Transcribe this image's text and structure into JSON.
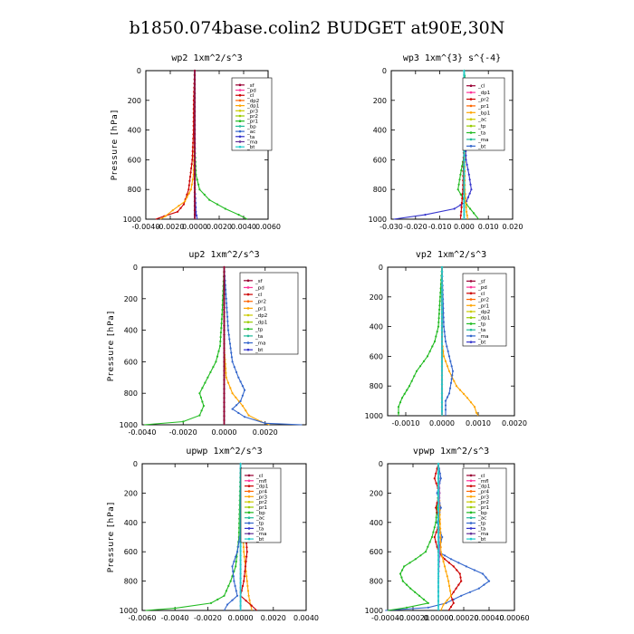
{
  "page_title": "b1850.074base.colin2  BUDGET at90E,30N",
  "chart_data": [
    {
      "type": "line",
      "title": "wp2   1xm^2/s^3",
      "ylabel": "Pressure [hPa]",
      "ylim": [
        1000,
        0
      ],
      "xlim": [
        -0.004,
        0.006
      ],
      "xticks": [
        "-0.0040",
        "-0.0020",
        "0.0000",
        "0.0020",
        "0.0040",
        "0.0060"
      ],
      "xtick_values": [
        -0.004,
        -0.002,
        0,
        0.002,
        0.004,
        0.006
      ],
      "yticks": [
        "0",
        "200",
        "400",
        "600",
        "800",
        "1000"
      ],
      "legend": [
        "_sf",
        "_pd",
        "_cl",
        "_dp2",
        "_dp1",
        "_pr3",
        "_pr2",
        "_pr1",
        "_bp",
        "_ac",
        "_ta",
        "_ma",
        "_bt"
      ],
      "series": [
        {
          "name": "_dp1",
          "color": "#cc0000",
          "p": [
            0,
            200,
            400,
            600,
            800,
            900,
            950,
            980,
            1000
          ],
          "x": [
            0,
            -8e-05,
            -0.0001,
            -0.0002,
            -0.0005,
            -0.0009,
            -0.0014,
            -0.0025,
            -0.0032
          ]
        },
        {
          "name": "_pr1",
          "color": "#ffa500",
          "p": [
            0,
            400,
            700,
            800,
            880,
            940,
            980,
            1000
          ],
          "x": [
            0,
            0,
            -0.0001,
            -0.0003,
            -0.0008,
            -0.0018,
            -0.0024,
            -0.0028
          ]
        },
        {
          "name": "_ac",
          "color": "#22bb22",
          "p": [
            0,
            500,
            700,
            800,
            870,
            930,
            970,
            1000
          ],
          "x": [
            0,
            0,
            0.0001,
            0.0004,
            0.0012,
            0.0025,
            0.0036,
            0.0043
          ]
        },
        {
          "name": "_bp",
          "color": "#3333cc",
          "p": [
            0,
            800,
            950,
            1000
          ],
          "x": [
            0,
            2e-05,
            0.0001,
            0.0002
          ]
        },
        {
          "name": "_pd",
          "color": "#ff3399",
          "p": [
            0,
            1000
          ],
          "x": [
            0,
            0
          ]
        },
        {
          "name": "_bt",
          "color": "#22cccc",
          "p": [
            0,
            1000
          ],
          "x": [
            0,
            0
          ]
        },
        {
          "name": "_sf",
          "color": "#990033",
          "p": [
            0,
            1000
          ],
          "x": [
            0,
            0
          ]
        }
      ]
    },
    {
      "type": "line",
      "title": "wp3   1xm^{3} s^{-4}",
      "ylabel": "",
      "ylim": [
        1000,
        0
      ],
      "xlim": [
        -0.03,
        0.02
      ],
      "xticks": [
        "-0.030",
        "-0.020",
        "-0.010",
        "0.000",
        "0.010",
        "0.020"
      ],
      "xtick_values": [
        -0.03,
        -0.02,
        -0.01,
        0,
        0.01,
        0.02
      ],
      "yticks": [
        "0",
        "200",
        "400",
        "600",
        "800",
        "1000"
      ],
      "legend": [
        "_cl",
        "_dp1",
        "_pr2",
        "_pr1",
        "_bp1",
        "_ac",
        "_tp",
        "_ta",
        "_ma",
        "_bt"
      ],
      "series": [
        {
          "name": "_ac",
          "color": "#22bb22",
          "p": [
            0,
            100,
            200,
            300,
            500,
            700,
            800,
            900,
            960,
            1000
          ],
          "x": [
            0,
            0.0008,
            0.002,
            0.0015,
            0.0008,
            -0.0015,
            -0.0025,
            0.001,
            0.004,
            0.006
          ]
        },
        {
          "name": "_ta",
          "color": "#3333cc",
          "p": [
            0,
            200,
            400,
            600,
            700,
            800,
            880,
            930,
            970,
            1000
          ],
          "x": [
            0,
            0.0002,
            0.0003,
            0.0008,
            0.002,
            0.003,
            0.001,
            -0.004,
            -0.016,
            -0.029
          ]
        },
        {
          "name": "_dp1",
          "color": "#cc0000",
          "p": [
            0,
            400,
            800,
            950,
            1000
          ],
          "x": [
            0,
            0,
            -0.0005,
            -0.0012,
            -0.0015
          ]
        },
        {
          "name": "_pr1",
          "color": "#ffa500",
          "p": [
            0,
            800,
            950,
            1000
          ],
          "x": [
            0,
            0.0003,
            0.001,
            0.0015
          ]
        },
        {
          "name": "_tp",
          "color": "#22bb99",
          "p": [
            0,
            1000
          ],
          "x": [
            0,
            0
          ]
        },
        {
          "name": "_bt",
          "color": "#22cccc",
          "p": [
            0,
            1000
          ],
          "x": [
            0,
            0
          ]
        }
      ]
    },
    {
      "type": "line",
      "title": "up2   1xm^2/s^3",
      "ylabel": "Pressure [hPa]",
      "ylim": [
        1000,
        0
      ],
      "xlim": [
        -0.004,
        0.004
      ],
      "xticks": [
        "-0.0040",
        "-0.0020",
        "0.0000",
        "0.0020"
      ],
      "xtick_values": [
        -0.004,
        -0.002,
        0,
        0.002
      ],
      "yticks": [
        "0",
        "200",
        "400",
        "600",
        "800",
        "1000"
      ],
      "legend": [
        "_sf",
        "_pd",
        "_cl",
        "_pr2",
        "_pr1",
        "_dp2",
        "_dp1",
        "_tp",
        "_ta",
        "_ma",
        "_bt"
      ],
      "series": [
        {
          "name": "_dp1",
          "color": "#22bb22",
          "p": [
            0,
            300,
            500,
            600,
            700,
            800,
            880,
            940,
            980,
            1000
          ],
          "x": [
            0,
            -0.0001,
            -0.0002,
            -0.0004,
            -0.0008,
            -0.0012,
            -0.001,
            -0.0012,
            -0.002,
            -0.0039
          ]
        },
        {
          "name": "_pr1",
          "color": "#ffa500",
          "p": [
            0,
            500,
            700,
            800,
            880,
            940,
            980,
            1000
          ],
          "x": [
            0,
            0,
            0.0001,
            0.0004,
            0.0009,
            0.0012,
            0.0018,
            0.0022
          ]
        },
        {
          "name": "_ta",
          "color": "#3366cc",
          "p": [
            0,
            400,
            600,
            700,
            780,
            850,
            900,
            950,
            990,
            1000
          ],
          "x": [
            0,
            0.0002,
            0.0004,
            0.0007,
            0.001,
            0.0008,
            0.0004,
            0.001,
            0.002,
            0.0038
          ]
        },
        {
          "name": "_cl",
          "color": "#cc0000",
          "p": [
            0,
            1000
          ],
          "x": [
            0,
            0
          ]
        },
        {
          "name": "_bt",
          "color": "#22cccc",
          "p": [
            0,
            1000
          ],
          "x": [
            0,
            0
          ]
        },
        {
          "name": "_sf",
          "color": "#990033",
          "p": [
            0,
            1000
          ],
          "x": [
            0,
            0
          ]
        }
      ]
    },
    {
      "type": "line",
      "title": "vp2   1xm^2/s^3",
      "ylabel": "",
      "ylim": [
        1000,
        0
      ],
      "xlim": [
        -0.0015,
        0.002
      ],
      "xticks": [
        "-0.0010",
        "0.0000",
        "0.0010",
        "0.0020"
      ],
      "xtick_values": [
        -0.001,
        0,
        0.001,
        0.002
      ],
      "yticks": [
        "0",
        "200",
        "400",
        "600",
        "800",
        "1000"
      ],
      "legend": [
        "_sf",
        "_pd",
        "_cl",
        "_pr2",
        "_pr1",
        "_dp2",
        "_dp1",
        "_tp",
        "_ta",
        "_ma",
        "_bt"
      ],
      "series": [
        {
          "name": "_dp1",
          "color": "#22bb22",
          "p": [
            0,
            200,
            400,
            500,
            600,
            700,
            800,
            880,
            940,
            980,
            1000
          ],
          "x": [
            0,
            -5e-05,
            -0.0001,
            -0.0002,
            -0.0004,
            -0.0007,
            -0.0009,
            -0.0011,
            -0.0012,
            -0.0012,
            -0.0012
          ]
        },
        {
          "name": "_pr1",
          "color": "#ffa500",
          "p": [
            0,
            500,
            600,
            700,
            800,
            880,
            940,
            980,
            1000
          ],
          "x": [
            0,
            0,
            5e-05,
            0.0002,
            0.0004,
            0.0007,
            0.0009,
            0.00095,
            0.001
          ]
        },
        {
          "name": "_ta",
          "color": "#3366cc",
          "p": [
            0,
            400,
            500,
            600,
            700,
            780,
            850,
            900,
            960,
            1000
          ],
          "x": [
            0,
            5e-05,
            0.0001,
            0.0002,
            0.0003,
            0.00025,
            0.0002,
            0.0001,
            0.0001,
            0.0001
          ]
        },
        {
          "name": "_cl",
          "color": "#cc0000",
          "p": [
            0,
            1000
          ],
          "x": [
            0,
            0
          ]
        },
        {
          "name": "_bt",
          "color": "#22cccc",
          "p": [
            0,
            1000
          ],
          "x": [
            0,
            0
          ]
        }
      ]
    },
    {
      "type": "line",
      "title": "upwp   1xm^2/s^3",
      "ylabel": "Pressure [hPa]",
      "ylim": [
        1000,
        0
      ],
      "xlim": [
        -0.006,
        0.004
      ],
      "xticks": [
        "-0.0060",
        "-0.0040",
        "-0.0020",
        "0.0000",
        "0.0020",
        "0.0040"
      ],
      "xtick_values": [
        -0.006,
        -0.004,
        -0.002,
        0,
        0.002,
        0.004
      ],
      "yticks": [
        "0",
        "200",
        "400",
        "600",
        "800",
        "1000"
      ],
      "legend": [
        "_cl",
        "_mfl",
        "_dp1",
        "_pr4",
        "_pr3",
        "_pr2",
        "_pr1",
        "_bp",
        "_ac",
        "_tp",
        "_ta",
        "_ma",
        "_bt"
      ],
      "series": [
        {
          "name": "_ac",
          "color": "#22bb22",
          "p": [
            0,
            500,
            700,
            800,
            900,
            950,
            985,
            1000
          ],
          "x": [
            0,
            -0.0001,
            -0.0003,
            -0.0006,
            -0.001,
            -0.0018,
            -0.004,
            -0.0058
          ]
        },
        {
          "name": "_ta",
          "color": "#3366cc",
          "p": [
            0,
            400,
            600,
            700,
            800,
            900,
            960,
            1000
          ],
          "x": [
            0,
            0.0001,
            -0.0002,
            -0.0005,
            -0.0004,
            -0.0002,
            -0.0008,
            -0.001
          ]
        },
        {
          "name": "_pr1",
          "color": "#ffa500",
          "p": [
            0,
            600,
            800,
            900,
            960,
            1000
          ],
          "x": [
            0,
            0.0002,
            0.0004,
            0.0005,
            0.0006,
            0.0007
          ]
        },
        {
          "name": "_dp1",
          "color": "#cc0000",
          "p": [
            0,
            300,
            600,
            800,
            900,
            1000
          ],
          "x": [
            0,
            0.0002,
            0.0004,
            0.0002,
            0,
            0.001
          ]
        },
        {
          "name": "_cl",
          "color": "#9966cc",
          "p": [
            0,
            1000
          ],
          "x": [
            0,
            0
          ]
        },
        {
          "name": "_bt",
          "color": "#22cccc",
          "p": [
            0,
            1000
          ],
          "x": [
            0,
            0
          ]
        }
      ]
    },
    {
      "type": "line",
      "title": "vpwp   1xm^2/s^3",
      "ylabel": "",
      "ylim": [
        1000,
        0
      ],
      "xlim": [
        -0.0004,
        0.0006
      ],
      "xticks": [
        "-0.00040",
        "-0.00020",
        "0.00000",
        "0.00020",
        "0.00040",
        "0.00060"
      ],
      "xtick_values": [
        -0.0004,
        -0.0002,
        0,
        0.0002,
        0.0004,
        0.0006
      ],
      "yticks": [
        "0",
        "200",
        "400",
        "600",
        "800",
        "1000"
      ],
      "legend": [
        "_cl",
        "_mfl",
        "_dp1",
        "_pr4",
        "_pr3",
        "_pr2",
        "_pr1",
        "_bp",
        "_ac",
        "_tp",
        "_ta",
        "_ma",
        "_bt"
      ],
      "series": [
        {
          "name": "_ta",
          "color": "#3366cc",
          "p": [
            0,
            100,
            200,
            300,
            400,
            500,
            600,
            650,
            700,
            750,
            800,
            850,
            900,
            950,
            980,
            1000
          ],
          "x": [
            0,
            2e-05,
            -1e-05,
            2e-05,
            -1e-05,
            3e-05,
            0,
            0.0001,
            0.00022,
            0.00035,
            0.0004,
            0.00032,
            0.00018,
            6e-05,
            -8e-05,
            -0.00042
          ]
        },
        {
          "name": "_ac",
          "color": "#22bb22",
          "p": [
            0,
            200,
            400,
            500,
            600,
            650,
            700,
            750,
            800,
            850,
            900,
            950,
            980,
            1000
          ],
          "x": [
            0,
            0,
            -2e-05,
            -5e-05,
            -0.0001,
            -0.00018,
            -0.00027,
            -0.0003,
            -0.00028,
            -0.00022,
            -0.00015,
            -8e-05,
            -0.00025,
            -0.0004
          ]
        },
        {
          "name": "_dp1",
          "color": "#cc0000",
          "p": [
            0,
            100,
            200,
            300,
            400,
            500,
            600,
            650,
            700,
            750,
            800,
            850,
            900,
            950,
            1000
          ],
          "x": [
            0,
            -3e-05,
            1e-05,
            -2e-05,
            1e-05,
            -3e-05,
            0,
            5e-05,
            0.00012,
            0.00017,
            0.00018,
            0.00014,
            0.0001,
            0.00012,
            8e-05
          ]
        },
        {
          "name": "_pr1",
          "color": "#ffa500",
          "p": [
            0,
            600,
            700,
            800,
            900,
            960,
            1000
          ],
          "x": [
            0,
            2e-05,
            5e-05,
            8e-05,
            0.0001,
            4e-05,
            2e-05
          ]
        },
        {
          "name": "_cl",
          "color": "#9966cc",
          "p": [
            0,
            200,
            400,
            600,
            800,
            1000
          ],
          "x": [
            0,
            1e-05,
            0,
            1e-05,
            0,
            0
          ]
        },
        {
          "name": "_bt",
          "color": "#22cccc",
          "p": [
            0,
            1000
          ],
          "x": [
            0,
            0
          ]
        }
      ]
    }
  ]
}
